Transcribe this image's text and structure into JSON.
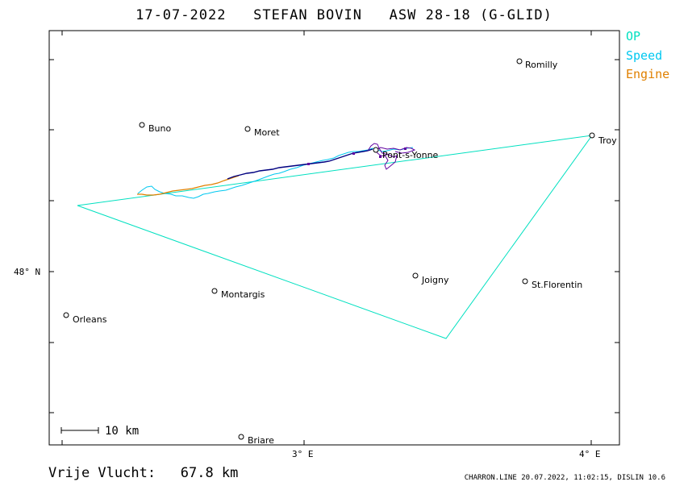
{
  "title": "17-07-2022   STEFAN BOVIN   ASW 28-18 (G-GLID)",
  "legend": {
    "items": [
      {
        "label": "OP",
        "color": "#00e0c0"
      },
      {
        "label": "Speed",
        "color": "#00c8f0"
      },
      {
        "label": "Engine",
        "color": "#e08000"
      }
    ]
  },
  "axes": {
    "x_ticks": [
      {
        "label": "3° E"
      },
      {
        "label": "4° E"
      }
    ],
    "y_ticks": [
      {
        "label": "48° N"
      }
    ]
  },
  "towns": [
    {
      "name": "Romilly"
    },
    {
      "name": "Buno"
    },
    {
      "name": "Moret"
    },
    {
      "name": "Troy"
    },
    {
      "name": "Pont-s-Yonne"
    },
    {
      "name": "Joigny"
    },
    {
      "name": "St.Florentin"
    },
    {
      "name": "Montargis"
    },
    {
      "name": "Orleans"
    },
    {
      "name": "Briare"
    }
  ],
  "scale_bar": {
    "label": "10  km"
  },
  "footer": {
    "distance": "Vrije Vlucht:   67.8 km",
    "credits": "CHARRON.LINE 20.07.2022, 11:02:15, DISLIN 10.6"
  },
  "colors": {
    "task": "#00e0c0",
    "speed": "#00c8f0",
    "engine": "#e08000",
    "track": "#000080",
    "track_alt": "#6000a0"
  }
}
